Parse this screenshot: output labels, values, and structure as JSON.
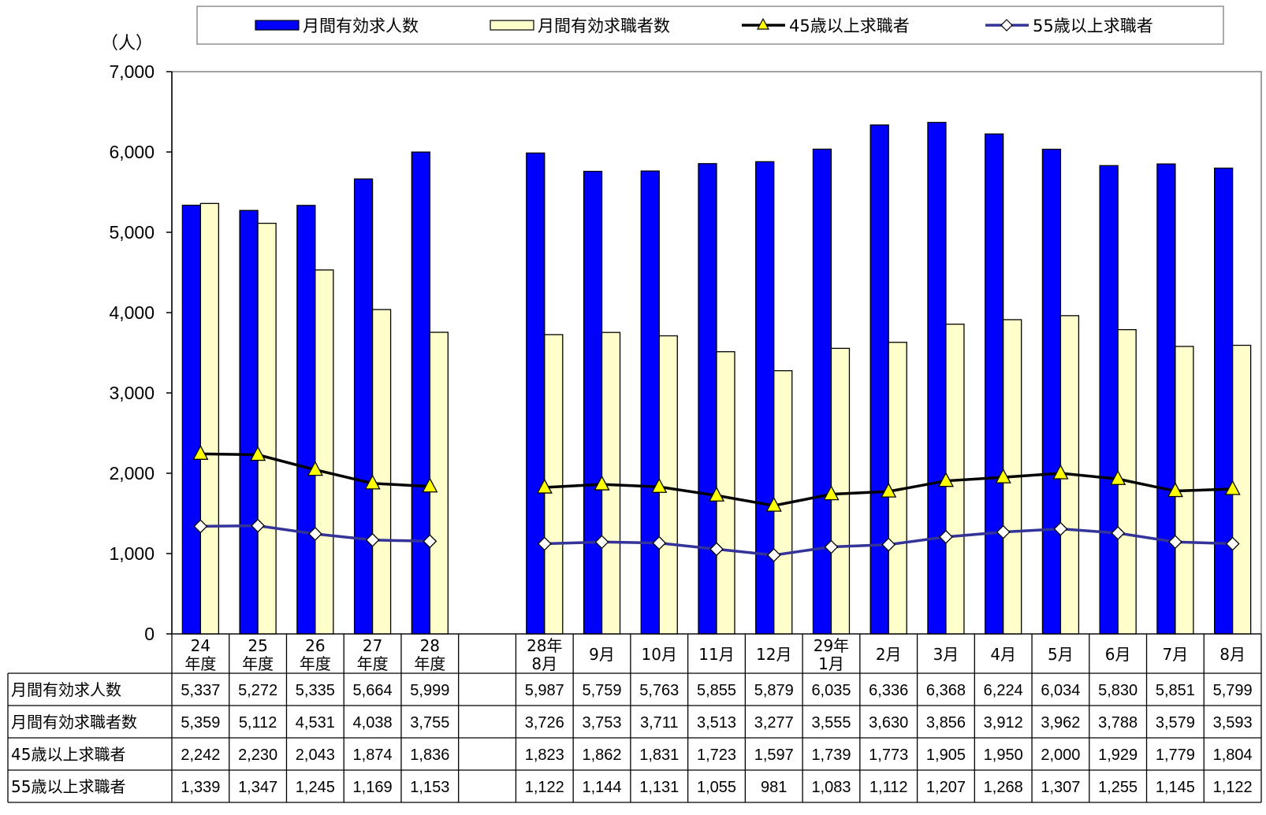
{
  "chart_data": {
    "type": "bar",
    "unit_label": "（人）",
    "ylim": [
      0,
      7000
    ],
    "yticks": [
      "0",
      "1,000",
      "2,000",
      "3,000",
      "4,000",
      "5,000",
      "6,000",
      "7,000"
    ],
    "categories": [
      [
        "24",
        "年度"
      ],
      [
        "25",
        "年度"
      ],
      [
        "26",
        "年度"
      ],
      [
        "27",
        "年度"
      ],
      [
        "28",
        "年度"
      ],
      [
        "",
        ""
      ],
      [
        "28年",
        "8月"
      ],
      [
        "9月"
      ],
      [
        "10月"
      ],
      [
        "11月"
      ],
      [
        "12月"
      ],
      [
        "29年",
        "1月"
      ],
      [
        "2月"
      ],
      [
        "3月"
      ],
      [
        "4月"
      ],
      [
        "5月"
      ],
      [
        "6月"
      ],
      [
        "7月"
      ],
      [
        "8月"
      ]
    ],
    "series": [
      {
        "name": "月間有効求人数",
        "kind": "bar",
        "color": "#0000FF",
        "values": [
          5337,
          5272,
          5335,
          5664,
          5999,
          null,
          5987,
          5759,
          5763,
          5855,
          5879,
          6035,
          6336,
          6368,
          6224,
          6034,
          5830,
          5851,
          5799
        ],
        "labels": [
          "5,337",
          "5,272",
          "5,335",
          "5,664",
          "5,999",
          "",
          "5,987",
          "5,759",
          "5,763",
          "5,855",
          "5,879",
          "6,035",
          "6,336",
          "6,368",
          "6,224",
          "6,034",
          "5,830",
          "5,851",
          "5,799"
        ]
      },
      {
        "name": "月間有効求職者数",
        "kind": "bar",
        "color": "#FFFFCC",
        "values": [
          5359,
          5112,
          4531,
          4038,
          3755,
          null,
          3726,
          3753,
          3711,
          3513,
          3277,
          3555,
          3630,
          3856,
          3912,
          3962,
          3788,
          3579,
          3593
        ],
        "labels": [
          "5,359",
          "5,112",
          "4,531",
          "4,038",
          "3,755",
          "",
          "3,726",
          "3,753",
          "3,711",
          "3,513",
          "3,277",
          "3,555",
          "3,630",
          "3,856",
          "3,912",
          "3,962",
          "3,788",
          "3,579",
          "3,593"
        ]
      },
      {
        "name": "45歳以上求職者",
        "kind": "line",
        "color": "#000000",
        "marker": "triangle",
        "marker_color": "#FFFF00",
        "values": [
          2242,
          2230,
          2043,
          1874,
          1836,
          null,
          1823,
          1862,
          1831,
          1723,
          1597,
          1739,
          1773,
          1905,
          1950,
          2000,
          1929,
          1779,
          1804
        ],
        "labels": [
          "2,242",
          "2,230",
          "2,043",
          "1,874",
          "1,836",
          "",
          "1,823",
          "1,862",
          "1,831",
          "1,723",
          "1,597",
          "1,739",
          "1,773",
          "1,905",
          "1,950",
          "2,000",
          "1,929",
          "1,779",
          "1,804"
        ]
      },
      {
        "name": "55歳以上求職者",
        "kind": "line",
        "color": "#333399",
        "marker": "diamond",
        "marker_color": "#FFFFFF",
        "values": [
          1339,
          1347,
          1245,
          1169,
          1153,
          null,
          1122,
          1144,
          1131,
          1055,
          981,
          1083,
          1112,
          1207,
          1268,
          1307,
          1255,
          1145,
          1122
        ],
        "labels": [
          "1,339",
          "1,347",
          "1,245",
          "1,169",
          "1,153",
          "",
          "1,122",
          "1,144",
          "1,131",
          "1,055",
          "981",
          "1,083",
          "1,112",
          "1,207",
          "1,268",
          "1,307",
          "1,255",
          "1,145",
          "1,122"
        ]
      }
    ],
    "legend": "top",
    "grid": false
  }
}
